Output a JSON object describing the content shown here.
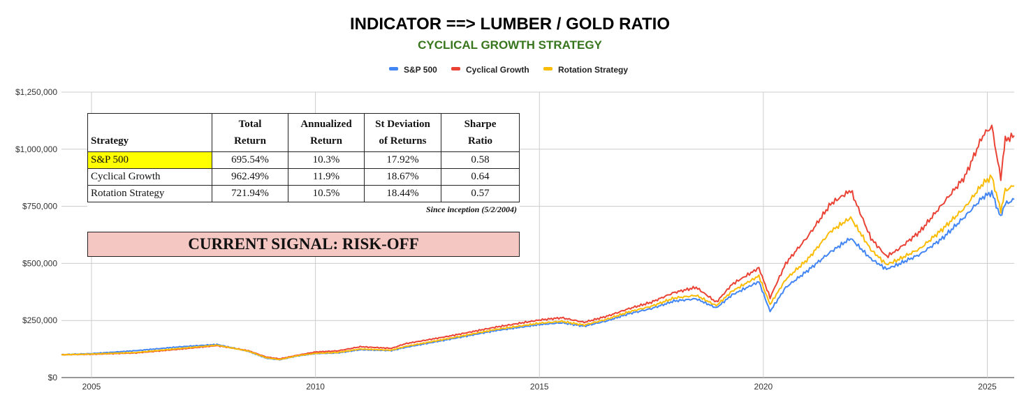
{
  "title": "INDICATOR ==> LUMBER / GOLD RATIO",
  "subtitle": "CYCLICAL GROWTH STRATEGY",
  "colors": {
    "title": "#000000",
    "subtitle": "#38761d",
    "grid": "#cccccc"
  },
  "chart_data": {
    "type": "line",
    "title": "INDICATOR ==> LUMBER / GOLD RATIO",
    "subtitle": "CYCLICAL GROWTH STRATEGY",
    "xlabel": "",
    "ylabel": "",
    "xlim": [
      2004.33,
      2025.6
    ],
    "ylim": [
      0,
      1250000
    ],
    "y_ticks": [
      0,
      250000,
      500000,
      750000,
      1000000,
      1250000
    ],
    "y_tick_labels": [
      "$0",
      "$250,000",
      "$500,000",
      "$750,000",
      "$1,000,000",
      "$1,250,000"
    ],
    "x_ticks": [
      2005,
      2010,
      2015,
      2020,
      2025
    ],
    "x_tick_labels": [
      "2005",
      "2010",
      "2015",
      "2020",
      "2025"
    ],
    "grid": true,
    "legend_position": "top-center",
    "x": [
      2004.33,
      2005,
      2006,
      2007,
      2007.8,
      2008.5,
      2008.9,
      2009.2,
      2009.6,
      2010,
      2010.5,
      2011,
      2011.7,
      2012,
      2013,
      2014,
      2015,
      2015.5,
      2016,
      2016.5,
      2017,
      2017.5,
      2018,
      2018.5,
      2018.95,
      2019.3,
      2019.9,
      2020.15,
      2020.5,
      2021,
      2021.5,
      2021.95,
      2022.4,
      2022.75,
      2023,
      2023.5,
      2024,
      2024.5,
      2024.9,
      2025.1,
      2025.3,
      2025.4,
      2025.6
    ],
    "series": [
      {
        "name": "S&P 500",
        "color": "#4285f4",
        "values": [
          100000,
          105000,
          118000,
          135000,
          145000,
          115000,
          85000,
          78000,
          95000,
          105000,
          108000,
          122000,
          118000,
          132000,
          168000,
          205000,
          232000,
          240000,
          225000,
          248000,
          280000,
          302000,
          335000,
          345000,
          305000,
          362000,
          420000,
          290000,
          395000,
          470000,
          550000,
          610000,
          520000,
          475000,
          495000,
          540000,
          610000,
          705000,
          790000,
          810000,
          700000,
          760000,
          780000
        ]
      },
      {
        "name": "Cyclical Growth",
        "color": "#ea4335",
        "values": [
          100000,
          102000,
          108000,
          125000,
          140000,
          118000,
          90000,
          82000,
          98000,
          112000,
          117000,
          135000,
          128000,
          148000,
          182000,
          220000,
          252000,
          262000,
          242000,
          268000,
          302000,
          330000,
          372000,
          395000,
          330000,
          408000,
          480000,
          350000,
          500000,
          620000,
          760000,
          820000,
          610000,
          530000,
          560000,
          640000,
          760000,
          880000,
          1060000,
          1100000,
          870000,
          1040000,
          1060000
        ]
      },
      {
        "name": "Rotation Strategy",
        "color": "#fbbc04",
        "values": [
          100000,
          103000,
          110000,
          128000,
          142000,
          116000,
          87000,
          79000,
          96000,
          106000,
          110000,
          125000,
          120000,
          136000,
          172000,
          210000,
          238000,
          246000,
          230000,
          255000,
          288000,
          312000,
          348000,
          360000,
          315000,
          378000,
          445000,
          320000,
          430000,
          520000,
          640000,
          700000,
          560000,
          495000,
          515000,
          565000,
          650000,
          745000,
          850000,
          880000,
          730000,
          820000,
          840000
        ]
      }
    ]
  },
  "table": {
    "headers": [
      {
        "top": "",
        "bottom": "Strategy"
      },
      {
        "top": "Total",
        "bottom": "Return"
      },
      {
        "top": "Annualized",
        "bottom": "Return"
      },
      {
        "top": "St Deviation",
        "bottom": "of Returns"
      },
      {
        "top": "Sharpe",
        "bottom": "Ratio"
      }
    ],
    "rows": [
      {
        "name": "S&P 500",
        "total": "695.54%",
        "annualized": "10.3%",
        "stdev": "17.92%",
        "sharpe": "0.58"
      },
      {
        "name": "Cyclical Growth",
        "total": "962.49%",
        "annualized": "11.9%",
        "stdev": "18.67%",
        "sharpe": "0.64"
      },
      {
        "name": "Rotation Strategy",
        "total": "721.94%",
        "annualized": "10.5%",
        "stdev": "18.44%",
        "sharpe": "0.57"
      }
    ],
    "highlight_color": "#ffff00",
    "note": "Since inception (5/2/2004)"
  },
  "signal": {
    "text": "CURRENT SIGNAL: RISK-OFF",
    "color": "#f4c7c3"
  }
}
